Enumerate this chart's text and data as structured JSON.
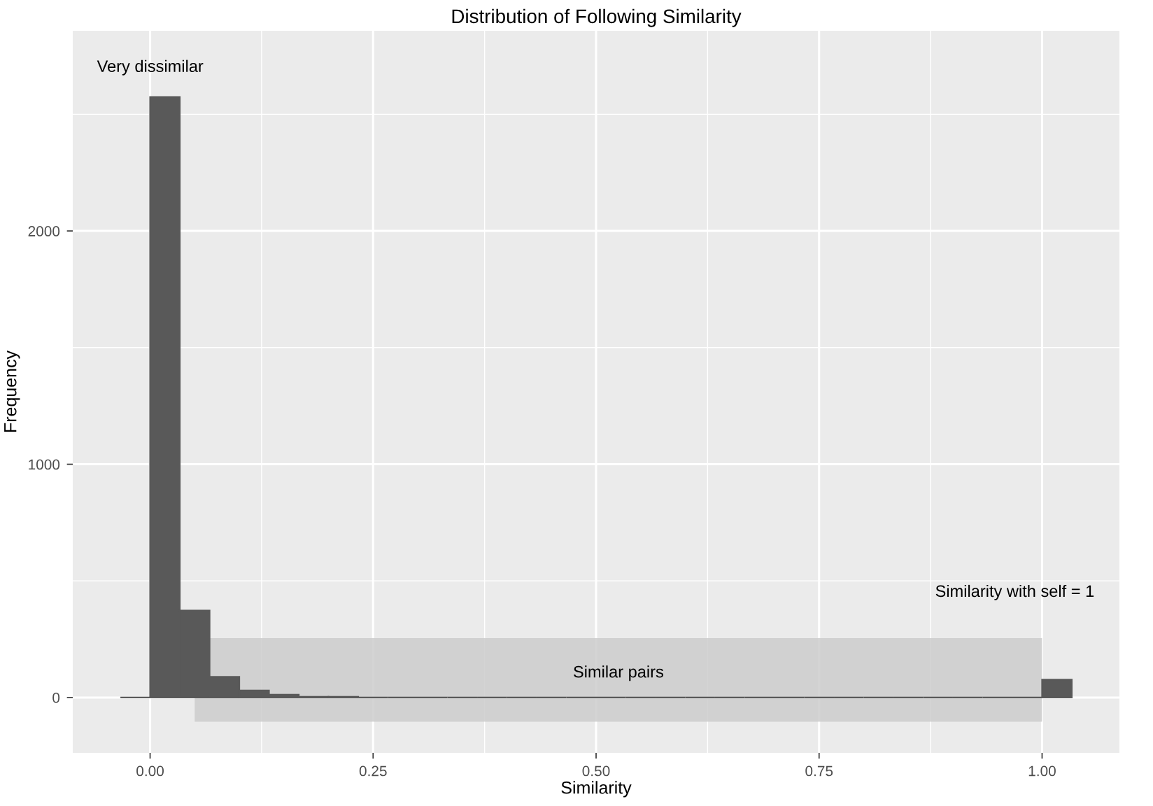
{
  "chart_data": {
    "type": "histogram",
    "title": "Distribution of Following Similarity",
    "xlabel": "Similarity",
    "ylabel": "Frequency",
    "bins": [
      -0.0333,
      0,
      0.0333,
      0.0667,
      0.1,
      0.1333,
      0.1667,
      0.2,
      0.2333,
      0.2667,
      0.3,
      0.3333,
      0.3667,
      0.4,
      0.4333,
      0.4667,
      0.5,
      0.5333,
      0.5667,
      0.6,
      0.6333,
      0.6667,
      0.7,
      0.7333,
      0.7667,
      0.8,
      0.8333,
      0.8667,
      0.9,
      0.9333,
      0.9667,
      1.0,
      1.0333
    ],
    "values": [
      0,
      2574,
      373,
      89,
      30,
      12,
      3,
      3,
      0,
      0,
      0,
      0,
      0,
      0,
      0,
      0,
      0,
      0,
      0,
      0,
      0,
      0,
      0,
      0,
      0,
      0,
      0,
      0,
      0,
      0,
      0,
      77
    ],
    "color": "#595959",
    "xlim": [
      -0.0867,
      1.0867
    ],
    "ylim": [
      -237,
      2858
    ],
    "xticks": [
      {
        "value": 0,
        "label": "0.00"
      },
      {
        "value": 0.25,
        "label": "0.25"
      },
      {
        "value": 0.5,
        "label": "0.50"
      },
      {
        "value": 0.75,
        "label": "0.75"
      },
      {
        "value": 1,
        "label": "1.00"
      }
    ],
    "yticks": [
      0,
      1000,
      2000
    ],
    "grid": true,
    "bands": [
      {
        "axis": "x",
        "from": 0.05,
        "to": 1.0,
        "label": "Similar pairs",
        "color": "#cccccc"
      }
    ],
    "annotations": [
      "Very dissimilar",
      "Similarity with self = 1"
    ]
  }
}
